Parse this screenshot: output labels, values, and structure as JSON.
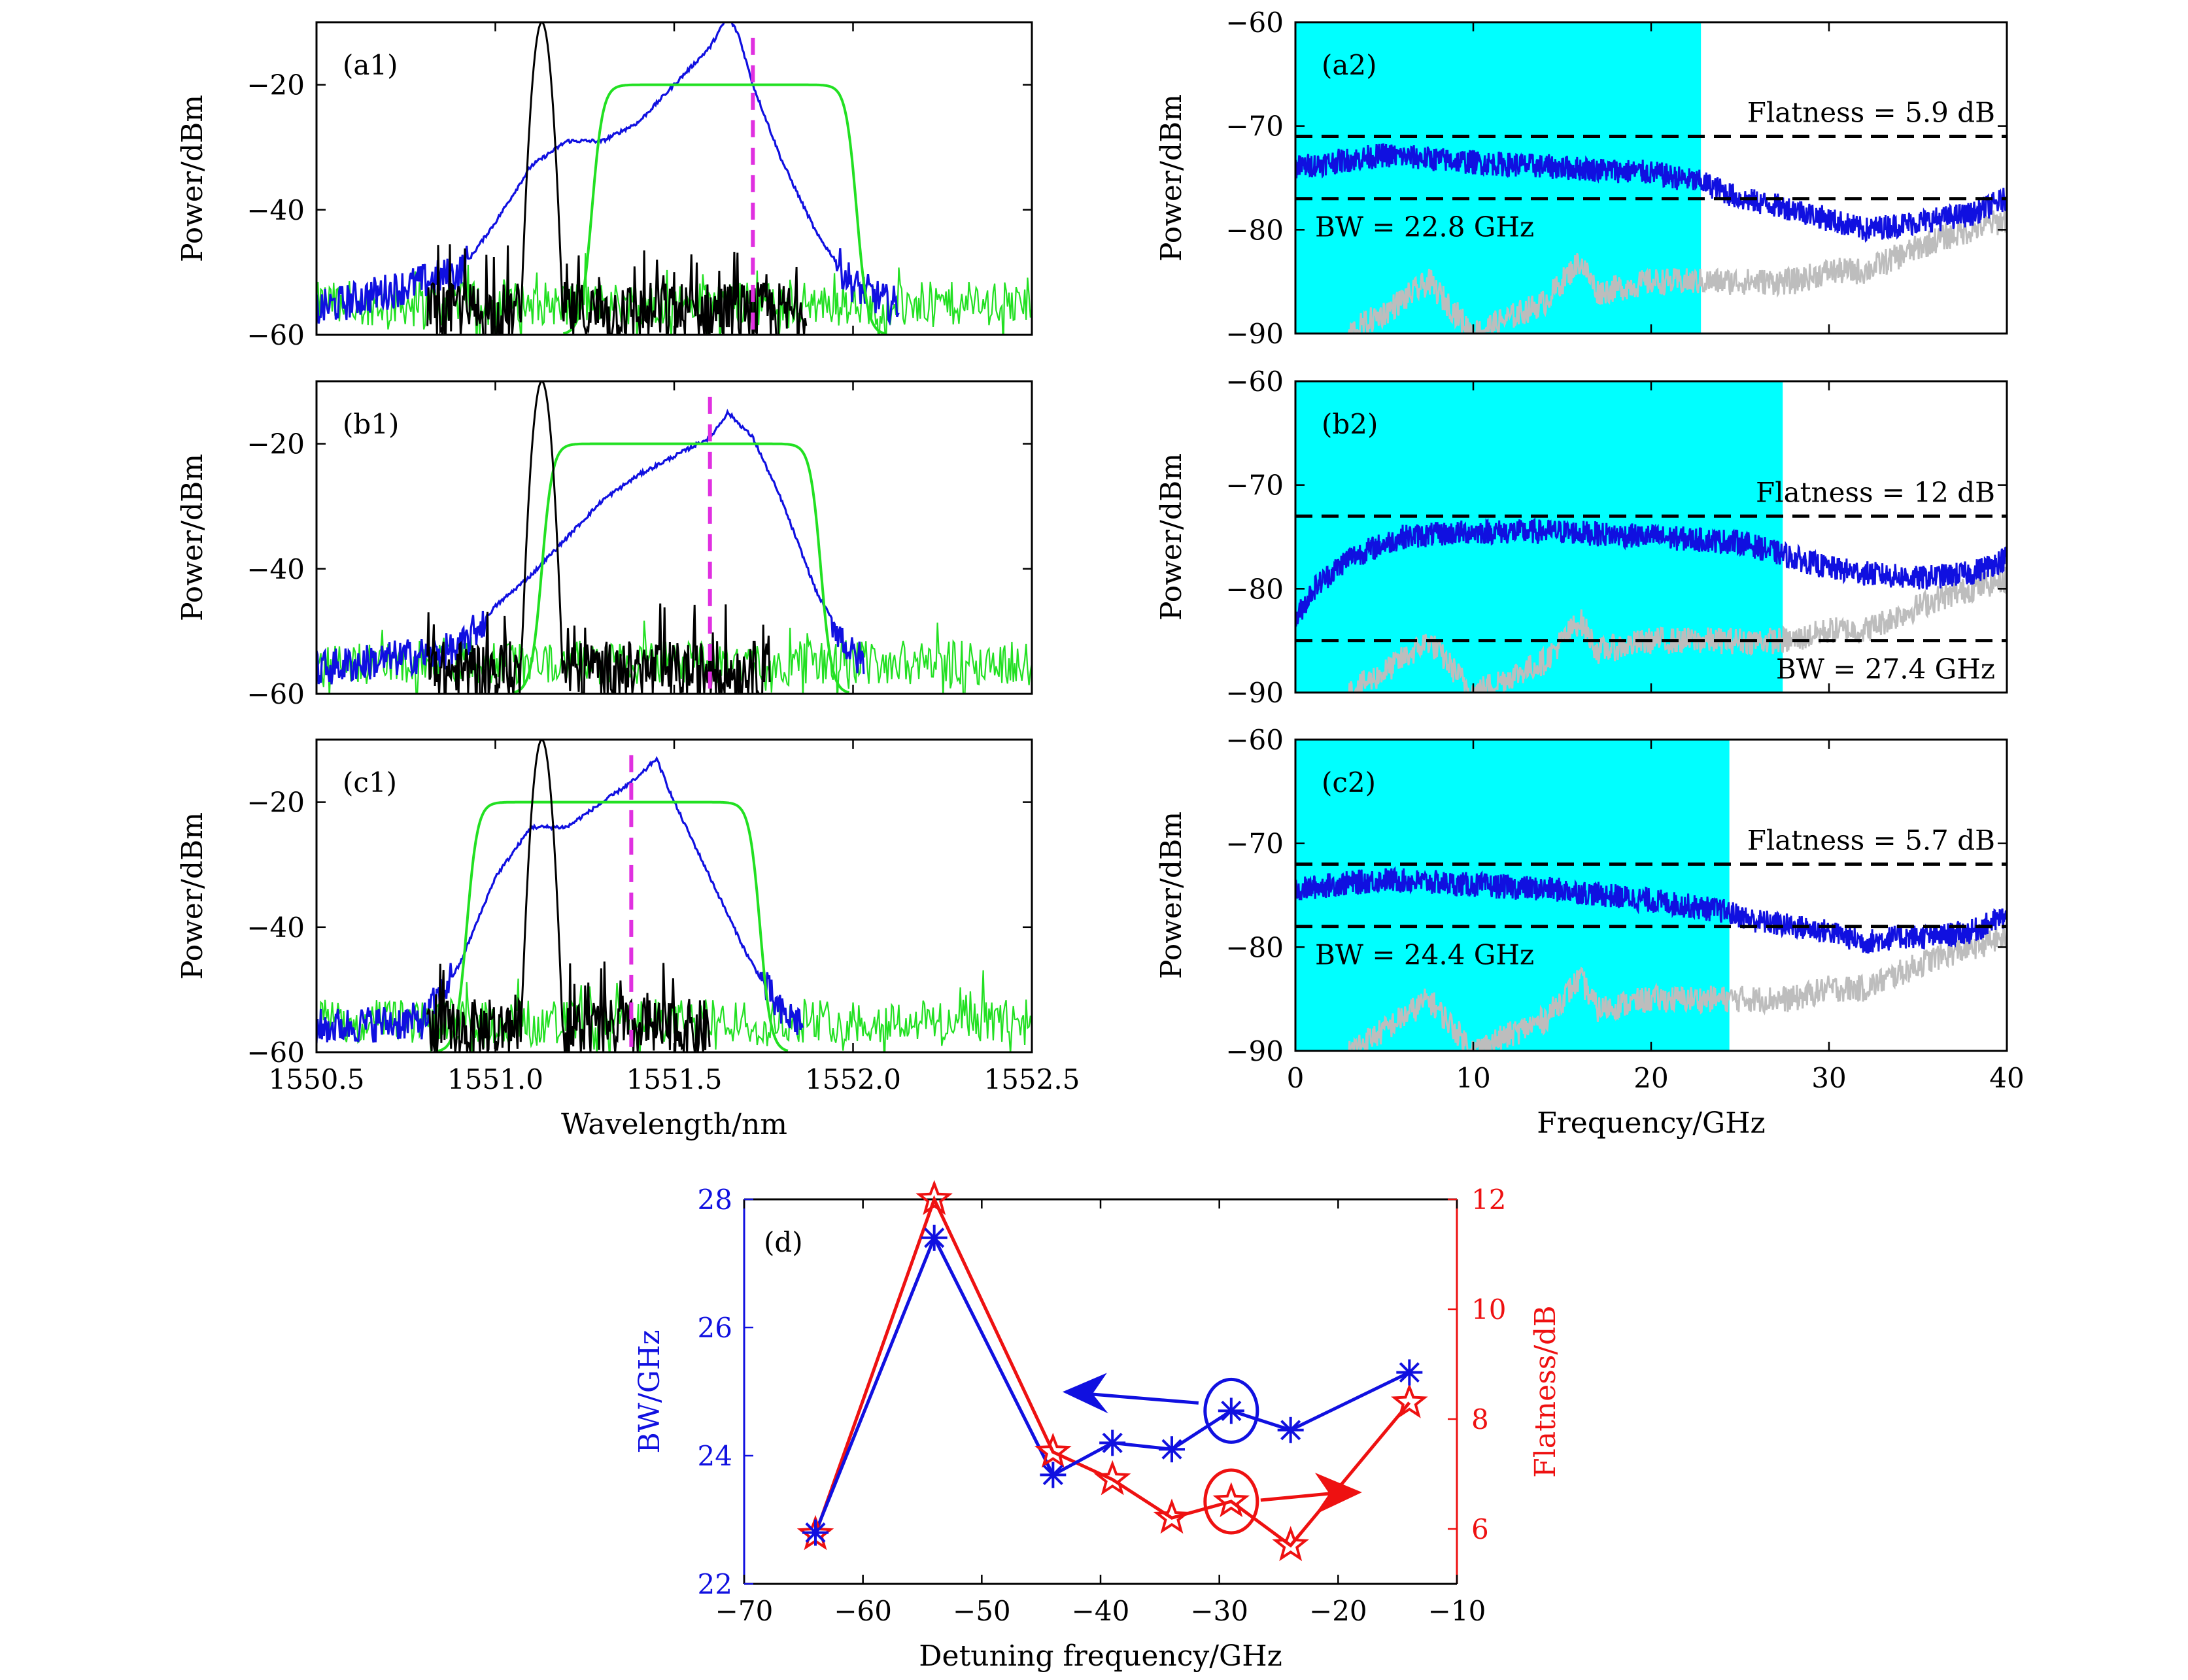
{
  "colors": {
    "blue": "#1010e0",
    "black": "#000000",
    "green": "#22e022",
    "magenta": "#e030e0",
    "cyan": "#00ffff",
    "gray": "#bdbdbd",
    "red": "#ee1111",
    "dash": "#000000"
  },
  "chart_data": [
    {
      "id": "a1",
      "type": "line",
      "panel_label": "(a1)",
      "xlim": [
        1550.5,
        1552.5
      ],
      "ylim": [
        -60,
        -10
      ],
      "xticks": [
        1550.5,
        1551.0,
        1551.5,
        1552.0,
        1552.5
      ],
      "yticks": [
        -60,
        -40,
        -20
      ],
      "ylabel": "Power/dBm",
      "xlabel": "",
      "pump_center": 1551.13,
      "filter": {
        "start": 1551.21,
        "end": 1552.07,
        "level": -20
      },
      "blue": {
        "x": [
          1550.5,
          1550.9,
          1551.0,
          1551.1,
          1551.2,
          1551.3,
          1551.4,
          1551.5,
          1551.6,
          1551.65,
          1551.68,
          1551.72,
          1551.8,
          1551.9,
          1552.0,
          1552.1
        ],
        "y": [
          -56,
          -50,
          -42,
          -33,
          -29,
          -29,
          -26,
          -20,
          -14,
          -9,
          -12,
          -20,
          -32,
          -44,
          -52,
          -55
        ]
      },
      "dashed_x": 1551.72,
      "show_xticklabels": false
    },
    {
      "id": "b1",
      "type": "line",
      "panel_label": "(b1)",
      "xlim": [
        1550.5,
        1552.5
      ],
      "ylim": [
        -60,
        -10
      ],
      "xticks": [
        1550.5,
        1551.0,
        1551.5,
        1552.0,
        1552.5
      ],
      "yticks": [
        -60,
        -40,
        -20
      ],
      "ylabel": "Power/dBm",
      "xlabel": "",
      "pump_center": 1551.13,
      "filter": {
        "start": 1551.07,
        "end": 1551.97,
        "level": -20
      },
      "blue": {
        "x": [
          1550.5,
          1550.9,
          1551.0,
          1551.1,
          1551.2,
          1551.3,
          1551.4,
          1551.5,
          1551.6,
          1551.65,
          1551.72,
          1551.8,
          1551.9,
          1552.0,
          1552.1
        ],
        "y": [
          -56,
          -53,
          -46,
          -41,
          -35,
          -29,
          -25,
          -22,
          -19,
          -15,
          -19,
          -29,
          -44,
          -54,
          -56
        ]
      },
      "dashed_x": 1551.6,
      "show_xticklabels": false
    },
    {
      "id": "c1",
      "type": "line",
      "panel_label": "(c1)",
      "xlim": [
        1550.5,
        1552.5
      ],
      "ylim": [
        -60,
        -10
      ],
      "xticks": [
        1550.5,
        1551.0,
        1551.5,
        1552.0,
        1552.5
      ],
      "yticks": [
        -60,
        -40,
        -20
      ],
      "ylabel": "Power/dBm",
      "xlabel": "Wavelength/nm",
      "pump_center": 1551.13,
      "filter": {
        "start": 1550.86,
        "end": 1551.8,
        "level": -20
      },
      "blue": {
        "x": [
          1550.5,
          1550.8,
          1550.9,
          1551.0,
          1551.1,
          1551.2,
          1551.3,
          1551.4,
          1551.45,
          1551.5,
          1551.6,
          1551.7,
          1551.8,
          1551.9,
          1552.0
        ],
        "y": [
          -56,
          -55,
          -46,
          -32,
          -24,
          -24,
          -20,
          -16,
          -13,
          -20,
          -32,
          -44,
          -54,
          -56,
          -57
        ]
      },
      "dashed_x": 1551.38,
      "show_xticklabels": true,
      "xticklabels": [
        "1550.5",
        "1551.0",
        "1551.5",
        "1552.0",
        "1552.5"
      ]
    },
    {
      "id": "a2",
      "type": "line",
      "panel_label": "(a2)",
      "xlim": [
        0,
        40
      ],
      "ylim": [
        -90,
        -60
      ],
      "xticks": [
        0,
        10,
        20,
        30,
        40
      ],
      "yticks": [
        -90,
        -80,
        -70,
        -60
      ],
      "ylabel": "Power/dBm",
      "xlabel": "",
      "bw_ghz": 22.8,
      "flat_top": -71,
      "flat_bot": -77,
      "flatness_label": "Flatness = 5.9 dB",
      "bw_label": "BW = 22.8 GHz",
      "signal": {
        "x": [
          0,
          2,
          5,
          10,
          15,
          20,
          23,
          25,
          28,
          30,
          32,
          34,
          36,
          38,
          40
        ],
        "y": [
          -74,
          -73.5,
          -72.8,
          -73.5,
          -74,
          -74.5,
          -75.5,
          -77,
          -78,
          -79,
          -80,
          -79.5,
          -79,
          -78.5,
          -77
        ]
      },
      "noise": {
        "x": [
          3,
          5,
          7.5,
          10,
          14,
          16,
          17,
          20,
          24,
          28,
          30,
          32,
          36,
          40
        ],
        "y": [
          -90,
          -88,
          -85,
          -90,
          -87,
          -83,
          -86,
          -85,
          -85,
          -85,
          -84,
          -84,
          -81,
          -79
        ]
      },
      "show_xticklabels": false
    },
    {
      "id": "b2",
      "type": "line",
      "panel_label": "(b2)",
      "xlim": [
        0,
        40
      ],
      "ylim": [
        -90,
        -60
      ],
      "xticks": [
        0,
        10,
        20,
        30,
        40
      ],
      "yticks": [
        -90,
        -80,
        -70,
        -60
      ],
      "ylabel": "Power/dBm",
      "xlabel": "",
      "bw_ghz": 27.4,
      "flat_top": -73,
      "flat_bot": -85,
      "flatness_label": "Flatness = 12 dB",
      "bw_label": "BW = 27.4 GHz",
      "signal": {
        "x": [
          0,
          1,
          3,
          6,
          10,
          15,
          20,
          25,
          28,
          30,
          32,
          35,
          38,
          40
        ],
        "y": [
          -83,
          -80,
          -77,
          -75,
          -74.5,
          -74.5,
          -75,
          -75.5,
          -77,
          -78,
          -78.5,
          -79,
          -78.5,
          -77
        ]
      },
      "noise": {
        "x": [
          3,
          5,
          7.5,
          10,
          14,
          16,
          17,
          20,
          24,
          28,
          30,
          32,
          36,
          40
        ],
        "y": [
          -90,
          -88,
          -85,
          -90,
          -87,
          -83,
          -86,
          -85,
          -85,
          -85,
          -84,
          -84,
          -81,
          -79
        ]
      },
      "show_xticklabels": false
    },
    {
      "id": "c2",
      "type": "line",
      "panel_label": "(c2)",
      "xlim": [
        0,
        40
      ],
      "ylim": [
        -90,
        -60
      ],
      "xticks": [
        0,
        10,
        20,
        30,
        40
      ],
      "yticks": [
        -90,
        -80,
        -70,
        -60
      ],
      "ylabel": "Power/dBm",
      "xlabel": "Frequency/GHz",
      "bw_ghz": 24.4,
      "flat_top": -72,
      "flat_bot": -78,
      "flatness_label": "Flatness = 5.7 dB",
      "bw_label": "BW = 24.4 GHz",
      "signal": {
        "x": [
          0,
          2,
          5,
          10,
          15,
          20,
          24,
          26,
          28,
          30,
          32,
          34,
          36,
          38,
          40
        ],
        "y": [
          -74.5,
          -74,
          -73.5,
          -74,
          -74.5,
          -75.5,
          -76.5,
          -77.5,
          -78,
          -78.5,
          -79.5,
          -79,
          -79,
          -78.5,
          -77
        ]
      },
      "noise": {
        "x": [
          3,
          5,
          7.5,
          10,
          14,
          16,
          17,
          20,
          24,
          28,
          30,
          32,
          36,
          40
        ],
        "y": [
          -90,
          -88,
          -85,
          -90,
          -87,
          -83,
          -86,
          -85,
          -85,
          -85,
          -84,
          -84,
          -81,
          -79
        ]
      },
      "xticklabels": [
        "0",
        "10",
        "20",
        "30",
        "40"
      ],
      "show_xticklabels": true
    },
    {
      "id": "d",
      "type": "line",
      "panel_label": "(d)",
      "xlim": [
        -70,
        -10
      ],
      "xticks": [
        -70,
        -60,
        -50,
        -40,
        -30,
        -20,
        -10
      ],
      "xticklabels": [
        "−70",
        "−60",
        "−50",
        "−40",
        "−30",
        "−20",
        "−10"
      ],
      "xlabel": "Detuning frequency/GHz",
      "ylim_left": [
        22,
        28
      ],
      "yticks_left": [
        22,
        24,
        26,
        28
      ],
      "ylabel_left": "BW/GHz",
      "ylim_right": [
        5,
        12
      ],
      "yticks_right": [
        6,
        8,
        10,
        12
      ],
      "ylabel_right": "Flatness/dB",
      "x": [
        -64,
        -54,
        -44,
        -39,
        -34,
        -29,
        -24,
        -14
      ],
      "bw": [
        22.8,
        27.4,
        23.7,
        24.2,
        24.1,
        24.7,
        24.4,
        25.3
      ],
      "flatness": [
        5.9,
        12,
        7.4,
        6.9,
        6.2,
        6.5,
        5.7,
        8.3
      ],
      "circled_index": 5
    }
  ]
}
